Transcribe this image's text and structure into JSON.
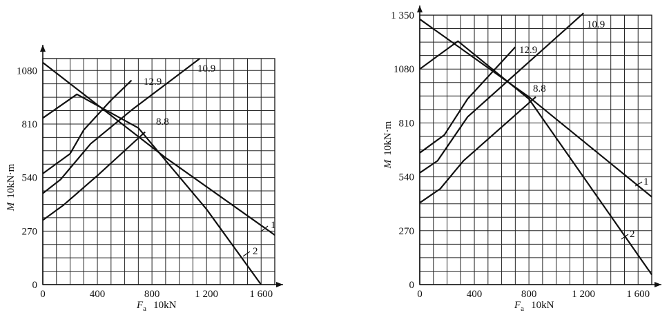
{
  "chart_data": [
    {
      "type": "line",
      "xlabel": {
        "symbol": "F",
        "sub": "a",
        "unit": "10kN"
      },
      "ylabel": {
        "symbol": "M",
        "unit": "10kN·m"
      },
      "xlim": [
        0,
        1700
      ],
      "ylim": [
        0,
        1140
      ],
      "xticks": [
        {
          "v": 0,
          "t": "0"
        },
        {
          "v": 400,
          "t": "400"
        },
        {
          "v": 800,
          "t": "800"
        },
        {
          "v": 1200,
          "t": "1 200"
        },
        {
          "v": 1600,
          "t": "1 600"
        }
      ],
      "yticks": [
        {
          "v": 270,
          "t": "270"
        },
        {
          "v": 540,
          "t": "540"
        },
        {
          "v": 810,
          "t": "810"
        },
        {
          "v": 1080,
          "t": "1080"
        }
      ],
      "grid_x_step": 100,
      "grid_y_step": 67.5,
      "series": [
        {
          "name": "1",
          "points": [
            [
              0,
              1120
            ],
            [
              900,
              640
            ],
            [
              1700,
              250
            ]
          ]
        },
        {
          "name": "2",
          "points": [
            [
              0,
              840
            ],
            [
              250,
              960
            ],
            [
              700,
              790
            ],
            [
              1200,
              380
            ],
            [
              1600,
              0
            ]
          ]
        },
        {
          "name": "12.9",
          "points": [
            [
              0,
              560
            ],
            [
              200,
              660
            ],
            [
              300,
              780
            ],
            [
              500,
              930
            ],
            [
              650,
              1030
            ]
          ]
        },
        {
          "name": "10.9",
          "points": [
            [
              0,
              460
            ],
            [
              130,
              530
            ],
            [
              350,
              710
            ],
            [
              650,
              880
            ],
            [
              1150,
              1140
            ]
          ]
        },
        {
          "name": "8.8",
          "points": [
            [
              0,
              325
            ],
            [
              150,
              400
            ],
            [
              400,
              550
            ],
            [
              750,
              770
            ]
          ]
        }
      ],
      "annotations": [
        "1",
        "2",
        "12.9",
        "10.9",
        "8.8"
      ]
    },
    {
      "type": "line",
      "xlabel": {
        "symbol": "F",
        "sub": "a",
        "unit": "10kN"
      },
      "ylabel": {
        "symbol": "M",
        "unit": "10kN·m"
      },
      "xlim": [
        0,
        1700
      ],
      "ylim": [
        0,
        1350
      ],
      "xticks": [
        {
          "v": 0,
          "t": "0"
        },
        {
          "v": 400,
          "t": "400"
        },
        {
          "v": 800,
          "t": "800"
        },
        {
          "v": 1200,
          "t": "1 200"
        },
        {
          "v": 1600,
          "t": "1 600"
        }
      ],
      "yticks": [
        {
          "v": 270,
          "t": "270"
        },
        {
          "v": 540,
          "t": "540"
        },
        {
          "v": 810,
          "t": "810"
        },
        {
          "v": 1080,
          "t": "1080"
        },
        {
          "v": 1350,
          "t": "1 350"
        }
      ],
      "grid_x_step": 100,
      "grid_y_step": 67.5,
      "series": [
        {
          "name": "1",
          "points": [
            [
              0,
              1330
            ],
            [
              800,
              940
            ],
            [
              1700,
              440
            ]
          ]
        },
        {
          "name": "2",
          "points": [
            [
              0,
              1080
            ],
            [
              280,
              1220
            ],
            [
              800,
              930
            ],
            [
              1700,
              50
            ]
          ]
        },
        {
          "name": "12.9",
          "points": [
            [
              0,
              660
            ],
            [
              180,
              750
            ],
            [
              350,
              930
            ],
            [
              700,
              1190
            ]
          ]
        },
        {
          "name": "10.9",
          "points": [
            [
              0,
              560
            ],
            [
              130,
              620
            ],
            [
              350,
              840
            ],
            [
              1200,
              1360
            ]
          ]
        },
        {
          "name": "8.8",
          "points": [
            [
              0,
              410
            ],
            [
              150,
              480
            ],
            [
              320,
              620
            ],
            [
              850,
              940
            ]
          ]
        }
      ],
      "annotations": [
        "1",
        "2",
        "12.9",
        "10.9",
        "8.8"
      ]
    }
  ]
}
